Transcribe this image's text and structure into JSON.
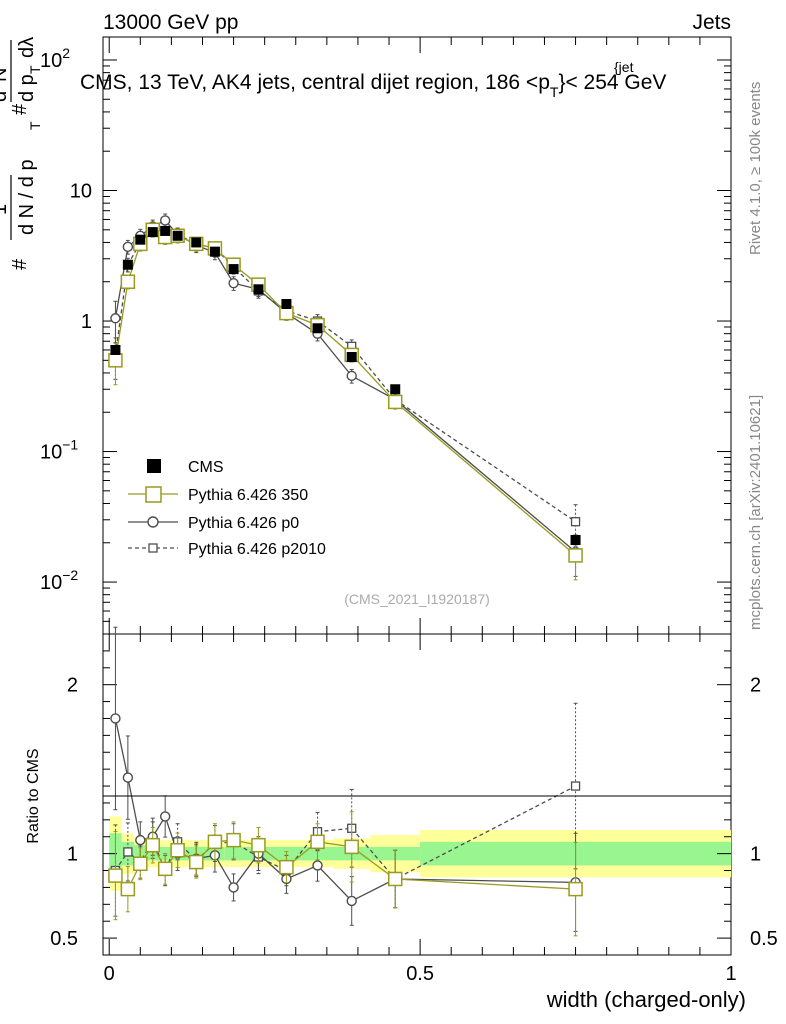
{
  "header": {
    "left": "13000 GeV pp",
    "right": "Jets"
  },
  "side_labels": {
    "rivet": "Rivet 4.1.0, ≥ 100k events",
    "mcplots": "mcplots.cern.ch [arXiv:2401.10621]"
  },
  "chart_data": [
    {
      "type": "scatter",
      "panel": "main",
      "title": "CMS, 13 TeV, AK4 jets, central dijet region, 186 <p",
      "title_sub": "T",
      "title_sup": "{jet",
      "title_end": "}< 254 GeV",
      "watermark": "(CMS_2021_I1920187)",
      "ylabel": "1/dN/dpT # d²N/dpT dλ",
      "yscale": "log",
      "ylim": [
        0.004,
        150
      ],
      "xlim": [
        -0.01,
        1.0
      ],
      "ytick_labels": [
        {
          "value": 100,
          "base": "10",
          "exp": "2"
        },
        {
          "value": 10,
          "base": "10",
          "exp": ""
        },
        {
          "value": 1,
          "base": "1",
          "exp": ""
        },
        {
          "value": 0.1,
          "base": "10",
          "exp": "−1"
        },
        {
          "value": 0.01,
          "base": "10",
          "exp": "−2"
        }
      ],
      "series": [
        {
          "name": "CMS",
          "style": "cms",
          "color": "#000000",
          "x": [
            0.01,
            0.03,
            0.05,
            0.07,
            0.09,
            0.11,
            0.14,
            0.17,
            0.2,
            0.24,
            0.285,
            0.335,
            0.39,
            0.46,
            0.75
          ],
          "y": [
            0.6,
            2.7,
            4.2,
            4.8,
            4.9,
            4.5,
            4.0,
            3.4,
            2.5,
            1.75,
            1.35,
            0.88,
            0.53,
            0.3,
            0.021
          ]
        },
        {
          "name": "Pythia 6.426 350",
          "style": "big-square",
          "color": "#9a9a1e",
          "x": [
            0.01,
            0.03,
            0.05,
            0.07,
            0.09,
            0.11,
            0.14,
            0.17,
            0.2,
            0.24,
            0.285,
            0.335,
            0.39,
            0.46,
            0.75
          ],
          "y": [
            0.5,
            2.0,
            3.9,
            5.0,
            4.4,
            4.5,
            3.9,
            3.6,
            2.7,
            1.9,
            1.15,
            0.93,
            0.55,
            0.24,
            0.016
          ]
        },
        {
          "name": "Pythia 6.426 p0",
          "style": "circle",
          "color": "#4d4d4d",
          "x": [
            0.01,
            0.03,
            0.05,
            0.07,
            0.09,
            0.11,
            0.14,
            0.17,
            0.2,
            0.24,
            0.285,
            0.335,
            0.39,
            0.46,
            0.75
          ],
          "y": [
            1.05,
            3.7,
            4.5,
            5.3,
            5.9,
            4.6,
            3.8,
            3.35,
            1.95,
            1.75,
            1.15,
            0.8,
            0.38,
            0.25,
            0.017
          ]
        },
        {
          "name": "Pythia 6.426 p2010",
          "style": "small-square-dashed",
          "color": "#4d4d4d",
          "x": [
            0.01,
            0.03,
            0.05,
            0.07,
            0.09,
            0.11,
            0.14,
            0.17,
            0.2,
            0.24,
            0.285,
            0.335,
            0.39,
            0.46,
            0.75
          ],
          "y": [
            0.55,
            2.7,
            4.0,
            5.0,
            4.4,
            4.6,
            3.9,
            3.6,
            2.6,
            1.7,
            1.2,
            1.0,
            0.64,
            0.25,
            0.029
          ]
        }
      ]
    },
    {
      "type": "scatter",
      "panel": "ratio",
      "ylabel": "Ratio to CMS",
      "xlabel": "width (charged-only)",
      "ylim": [
        0.4,
        2.3
      ],
      "ytick_labels": [
        "2",
        "1",
        "0.5"
      ],
      "yticks": [
        2,
        1,
        0.5
      ],
      "xtick_labels": [
        "0",
        "0.5",
        "1"
      ],
      "xticks": [
        0,
        0.5,
        1
      ],
      "band_bins": [
        {
          "x0": 0.0,
          "x1": 0.02,
          "inner": 0.12,
          "outer": 0.22
        },
        {
          "x0": 0.02,
          "x1": 0.04,
          "inner": 0.07,
          "outer": 0.12
        },
        {
          "x0": 0.04,
          "x1": 0.06,
          "inner": 0.05,
          "outer": 0.09
        },
        {
          "x0": 0.06,
          "x1": 0.08,
          "inner": 0.04,
          "outer": 0.08
        },
        {
          "x0": 0.08,
          "x1": 0.1,
          "inner": 0.04,
          "outer": 0.08
        },
        {
          "x0": 0.1,
          "x1": 0.125,
          "inner": 0.04,
          "outer": 0.08
        },
        {
          "x0": 0.125,
          "x1": 0.155,
          "inner": 0.04,
          "outer": 0.08
        },
        {
          "x0": 0.155,
          "x1": 0.185,
          "inner": 0.04,
          "outer": 0.08
        },
        {
          "x0": 0.185,
          "x1": 0.22,
          "inner": 0.04,
          "outer": 0.08
        },
        {
          "x0": 0.22,
          "x1": 0.26,
          "inner": 0.04,
          "outer": 0.08
        },
        {
          "x0": 0.26,
          "x1": 0.31,
          "inner": 0.04,
          "outer": 0.08
        },
        {
          "x0": 0.31,
          "x1": 0.36,
          "inner": 0.04,
          "outer": 0.08
        },
        {
          "x0": 0.36,
          "x1": 0.42,
          "inner": 0.04,
          "outer": 0.09
        },
        {
          "x0": 0.42,
          "x1": 0.5,
          "inner": 0.04,
          "outer": 0.11
        },
        {
          "x0": 0.5,
          "x1": 1.0,
          "inner": 0.07,
          "outer": 0.14
        }
      ],
      "series": [
        {
          "name": "Pythia 6.426 350",
          "style": "big-square",
          "color": "#9a9a1e",
          "x": [
            0.01,
            0.03,
            0.05,
            0.07,
            0.09,
            0.11,
            0.14,
            0.17,
            0.2,
            0.24,
            0.285,
            0.335,
            0.39,
            0.46,
            0.75
          ],
          "y": [
            0.87,
            0.79,
            0.94,
            1.05,
            0.91,
            1.02,
            0.95,
            1.07,
            1.08,
            1.05,
            0.92,
            1.07,
            1.04,
            0.85,
            0.79
          ]
        },
        {
          "name": "Pythia 6.426 p0",
          "style": "circle",
          "color": "#4d4d4d",
          "x": [
            0.01,
            0.03,
            0.05,
            0.07,
            0.09,
            0.11,
            0.14,
            0.17,
            0.2,
            0.24,
            0.285,
            0.335,
            0.39,
            0.46,
            0.75
          ],
          "y": [
            1.8,
            1.45,
            1.08,
            1.1,
            1.22,
            1.0,
            0.97,
            0.99,
            0.8,
            1.0,
            0.85,
            0.93,
            0.72,
            0.85,
            0.83
          ]
        },
        {
          "name": "Pythia 6.426 p2010",
          "style": "small-square-dashed",
          "color": "#4d4d4d",
          "x": [
            0.01,
            0.03,
            0.05,
            0.07,
            0.09,
            0.11,
            0.14,
            0.17,
            0.2,
            0.24,
            0.285,
            0.335,
            0.39,
            0.46,
            0.75
          ],
          "y": [
            0.9,
            1.01,
            0.95,
            1.08,
            0.9,
            1.07,
            0.96,
            1.06,
            1.07,
            0.98,
            0.9,
            1.13,
            1.15,
            0.85,
            1.4
          ]
        }
      ]
    }
  ]
}
